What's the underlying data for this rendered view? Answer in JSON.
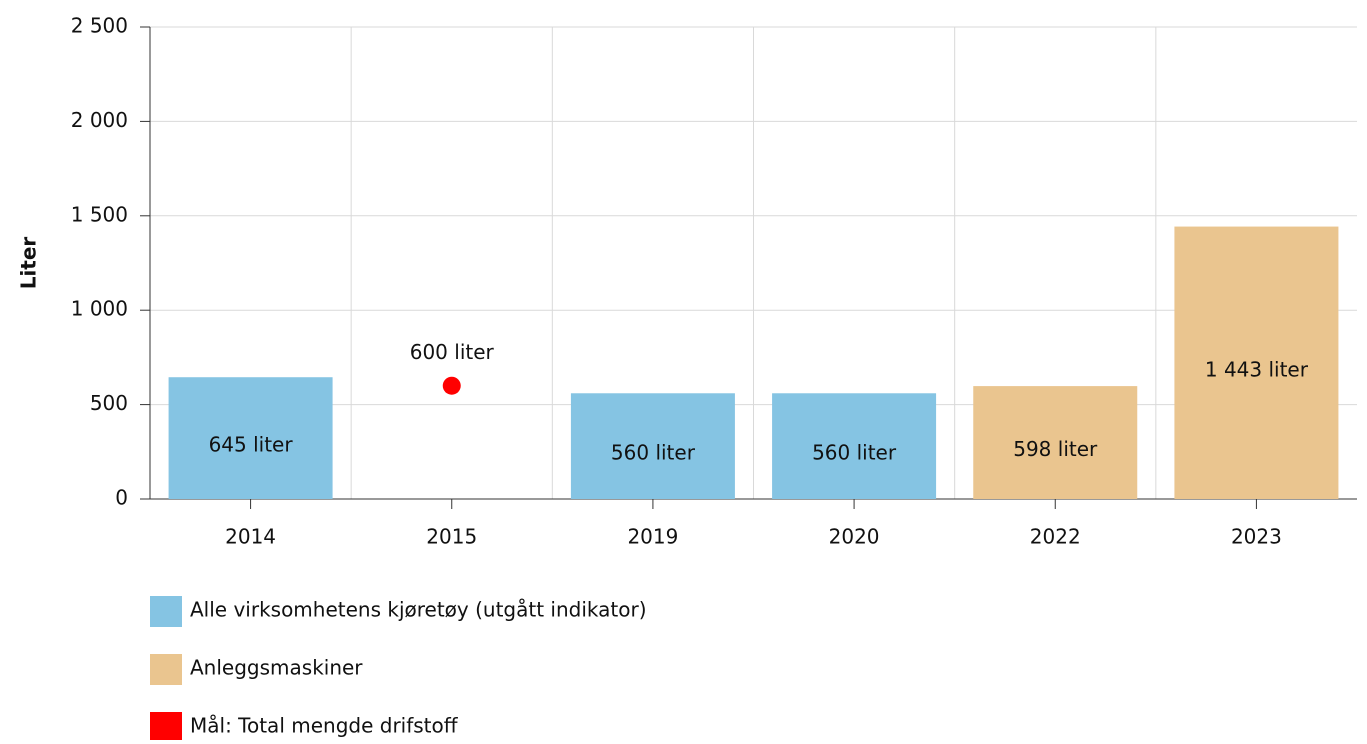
{
  "chart_data": {
    "type": "bar",
    "y_label": "Liter",
    "categories": [
      "2014",
      "2015",
      "2019",
      "2020",
      "2022",
      "2023"
    ],
    "series": [
      {
        "name": "Alle virksomhetens kjøretøy (utgått indikator)",
        "color": "#85c4e3",
        "values": [
          645,
          null,
          560,
          560,
          null,
          null
        ],
        "value_labels": [
          "645 liter",
          null,
          "560 liter",
          "560 liter",
          null,
          null
        ]
      },
      {
        "name": "Anleggsmaskiner",
        "color": "#eac58f",
        "values": [
          null,
          null,
          null,
          null,
          598,
          1443
        ],
        "value_labels": [
          null,
          null,
          null,
          null,
          "598 liter",
          "1 443 liter"
        ]
      },
      {
        "name": "Mål: Total mengde drifstoff",
        "type": "scatter",
        "color": "#ff0000",
        "values": [
          null,
          600,
          null,
          null,
          null,
          null
        ],
        "value_labels": [
          null,
          "600 liter",
          null,
          null,
          null,
          null
        ]
      }
    ],
    "ylim": [
      0,
      2500
    ],
    "yticks": [
      0,
      500,
      {
        "value": 1000,
        "label": "1 000"
      },
      {
        "value": 1500,
        "label": "1 500"
      },
      {
        "value": 2000,
        "label": "2 000"
      },
      {
        "value": 2500,
        "label": "2 500"
      }
    ],
    "grid": true
  }
}
